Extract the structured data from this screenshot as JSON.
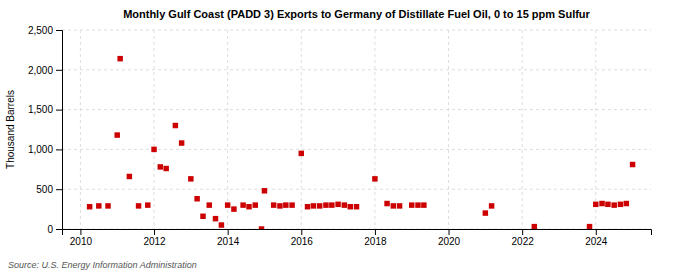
{
  "chart_data": {
    "type": "scatter",
    "title": "Monthly Gulf Coast (PADD 3) Exports to Germany of Distillate Fuel Oil, 0 to 15 ppm Sulfur",
    "ylabel": "Thousand Barrels",
    "source": "Source: U.S. Energy Information Administration",
    "color": "#cc0000",
    "marker": "square",
    "grid": true,
    "xlim": [
      2009.5,
      2025.5
    ],
    "ylim": [
      0,
      2500
    ],
    "xticks": [
      2010,
      2012,
      2014,
      2016,
      2018,
      2020,
      2022,
      2024
    ],
    "yticks": [
      0,
      500,
      {
        "value": 1000,
        "label": "1,000"
      },
      {
        "value": 1500,
        "label": "1,500"
      },
      {
        "value": 2000,
        "label": "2,000"
      },
      {
        "value": 2500,
        "label": "2,500"
      }
    ],
    "x": [
      2010.25,
      2010.5,
      2010.75,
      2011.0,
      2011.08,
      2011.33,
      2011.58,
      2011.83,
      2012.0,
      2012.17,
      2012.33,
      2012.58,
      2012.75,
      2013.0,
      2013.17,
      2013.33,
      2013.5,
      2013.67,
      2013.83,
      2014.0,
      2014.17,
      2014.42,
      2014.58,
      2014.75,
      2014.92,
      2015.0,
      2015.25,
      2015.42,
      2015.58,
      2015.75,
      2016.0,
      2016.17,
      2016.33,
      2016.5,
      2016.67,
      2016.83,
      2017.0,
      2017.17,
      2017.33,
      2017.5,
      2018.0,
      2018.33,
      2018.5,
      2018.67,
      2019.0,
      2019.17,
      2019.33,
      2021.0,
      2021.17,
      2022.33,
      2023.83,
      2024.0,
      2024.17,
      2024.33,
      2024.5,
      2024.67,
      2024.83,
      2025.0
    ],
    "values": [
      280,
      290,
      290,
      1180,
      2140,
      660,
      290,
      300,
      1000,
      780,
      760,
      1300,
      1080,
      630,
      380,
      160,
      300,
      130,
      50,
      300,
      250,
      300,
      280,
      300,
      0,
      480,
      300,
      290,
      300,
      300,
      950,
      280,
      290,
      290,
      300,
      300,
      310,
      300,
      280,
      280,
      630,
      320,
      290,
      290,
      300,
      300,
      300,
      200,
      290,
      30,
      30,
      310,
      320,
      310,
      300,
      310,
      320,
      810
    ]
  }
}
